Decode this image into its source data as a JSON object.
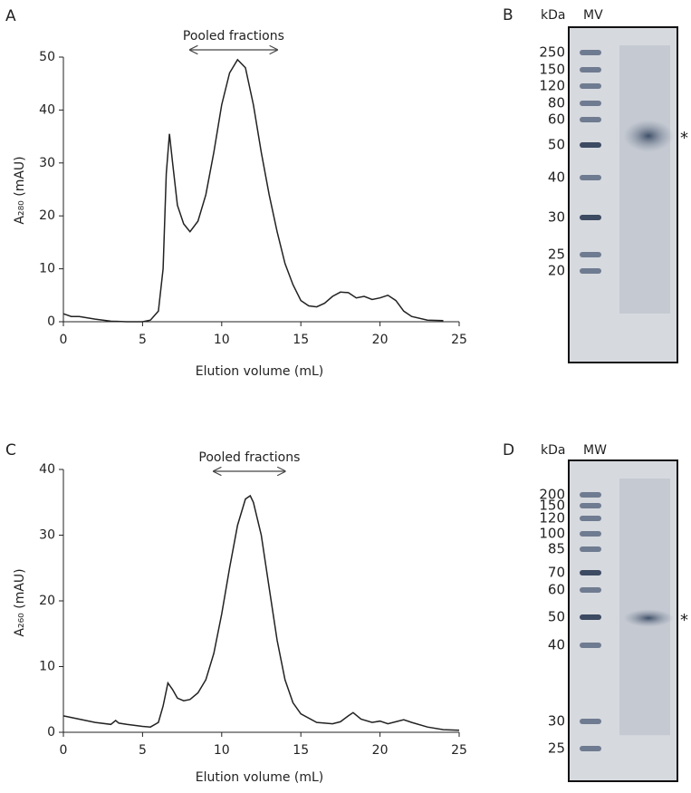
{
  "chart_data": [
    {
      "type": "line",
      "panel_label": "A",
      "x_label": "Elution volume (mL)",
      "y_label": "A₂₈₀ (mAU)",
      "annotations": [
        {
          "text": "Pooled fractions",
          "x": [
            8,
            13.5
          ]
        }
      ],
      "x": [
        0,
        0.5,
        1,
        2,
        3,
        4,
        5,
        5.5,
        6,
        6.3,
        6.5,
        6.7,
        6.9,
        7.2,
        7.6,
        8,
        8.5,
        9,
        9.5,
        10,
        10.5,
        11,
        11.5,
        12,
        12.5,
        13,
        13.5,
        14,
        14.5,
        15,
        15.5,
        16,
        16.5,
        17,
        17.5,
        18,
        18.5,
        19,
        19.5,
        20,
        20.5,
        21,
        21.5,
        22,
        23,
        24
      ],
      "values": [
        1.5,
        1.0,
        1.0,
        0.5,
        0.1,
        0,
        0,
        0.3,
        2,
        10,
        28,
        35.5,
        30,
        22,
        18.5,
        17,
        19,
        24,
        32,
        41,
        47,
        49.5,
        48,
        41,
        32,
        24,
        17,
        11,
        7,
        4,
        3,
        2.8,
        3.5,
        4.8,
        5.6,
        5.5,
        4.5,
        4.8,
        4.2,
        4.5,
        5,
        4,
        2,
        1,
        0.3,
        0.2
      ],
      "color": "#222222",
      "xlim": [
        0,
        25
      ],
      "xticks": [
        0,
        5,
        10,
        15,
        20,
        25
      ],
      "ylim": [
        0,
        50
      ],
      "yticks": [
        0,
        10,
        20,
        30,
        40,
        50
      ]
    },
    {
      "type": "line",
      "panel_label": "C",
      "x_label": "Elution volume (mL)",
      "y_label": "A₂₆₀ (mAU)",
      "annotations": [
        {
          "text": "Pooled fractions",
          "x": [
            9.5,
            14
          ]
        }
      ],
      "x": [
        0,
        1,
        2,
        3,
        3.3,
        3.5,
        4,
        5,
        5.5,
        6,
        6.3,
        6.6,
        6.9,
        7.2,
        7.6,
        8,
        8.5,
        9,
        9.5,
        10,
        10.5,
        11,
        11.5,
        11.8,
        12,
        12.5,
        13,
        13.5,
        14,
        14.5,
        15,
        16,
        17,
        17.5,
        18,
        18.3,
        18.8,
        19.5,
        20,
        20.5,
        21,
        21.5,
        22,
        23,
        24,
        25
      ],
      "values": [
        2.5,
        2,
        1.5,
        1.2,
        1.8,
        1.4,
        1.2,
        0.9,
        0.8,
        1.5,
        4,
        7.5,
        6.5,
        5.2,
        4.8,
        5,
        6,
        8,
        12,
        18,
        25,
        31.5,
        35.5,
        36,
        35,
        30,
        22,
        14,
        8,
        4.5,
        2.8,
        1.5,
        1.3,
        1.6,
        2.5,
        3,
        2,
        1.5,
        1.7,
        1.3,
        1.6,
        1.9,
        1.5,
        0.8,
        0.4,
        0.3
      ],
      "color": "#222222",
      "xlim": [
        0,
        25
      ],
      "xticks": [
        0,
        5,
        10,
        15,
        20,
        25
      ],
      "ylim": [
        0,
        40
      ],
      "yticks": [
        0,
        10,
        20,
        30,
        40
      ]
    }
  ],
  "gels": [
    {
      "panel_label": "B",
      "unit_label": "kDa",
      "lane_label": "MV",
      "markers": [
        250,
        150,
        120,
        80,
        60,
        50,
        40,
        30,
        25,
        20
      ],
      "band_marker": "*"
    },
    {
      "panel_label": "D",
      "unit_label": "kDa",
      "lane_label": "MW",
      "markers": [
        200,
        150,
        120,
        100,
        85,
        70,
        60,
        50,
        40,
        30,
        25
      ],
      "band_marker": "*"
    }
  ]
}
